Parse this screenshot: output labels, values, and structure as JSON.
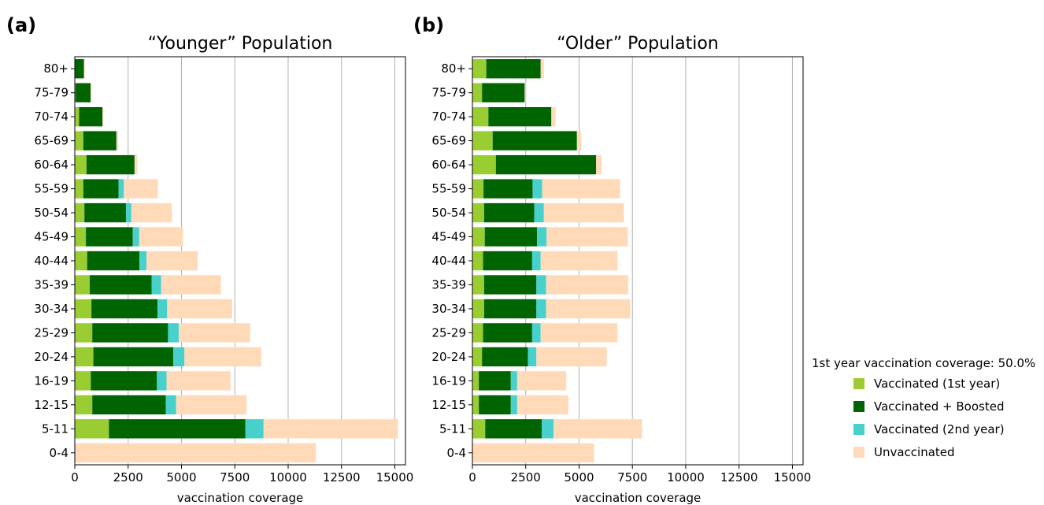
{
  "figure": {
    "legend": {
      "title": "1st year vaccination coverage: 50.0%",
      "entries": [
        {
          "label": "Vaccinated (1st year)",
          "color": "#9acd32"
        },
        {
          "label": "Vaccinated + Boosted",
          "color": "#006400"
        },
        {
          "label": "Vaccinated (2nd year)",
          "color": "#48d1cc"
        },
        {
          "label": "Unvaccinated",
          "color": "#ffdab9"
        }
      ],
      "placement": "right"
    }
  },
  "chart_data": [
    {
      "type": "bar",
      "orientation": "horizontal",
      "stacked": true,
      "panel_label": "(a)",
      "title": "“Younger” Population",
      "xlabel": "vaccination coverage",
      "ylabel": "",
      "xlim": [
        0,
        15500
      ],
      "xticks": [
        0,
        2500,
        5000,
        7500,
        10000,
        12500,
        15000
      ],
      "grid": "x",
      "categories": [
        "80+",
        "75-79",
        "70-74",
        "65-69",
        "60-64",
        "55-59",
        "50-54",
        "45-49",
        "40-44",
        "35-39",
        "30-34",
        "25-29",
        "20-24",
        "16-19",
        "12-15",
        "5-11",
        "0-4"
      ],
      "series": [
        {
          "name": "Vaccinated (1st year)",
          "color": "#9acd32",
          "values": [
            20,
            40,
            200,
            400,
            550,
            400,
            450,
            520,
            580,
            700,
            780,
            820,
            870,
            750,
            820,
            1600,
            0
          ]
        },
        {
          "name": "Vaccinated + Boosted",
          "color": "#006400",
          "values": [
            410,
            700,
            1100,
            1550,
            2250,
            1650,
            1950,
            2200,
            2450,
            2900,
            3100,
            3550,
            3750,
            3100,
            3450,
            6400,
            0
          ]
        },
        {
          "name": "Vaccinated (2nd year)",
          "color": "#48d1cc",
          "values": [
            0,
            0,
            0,
            0,
            0,
            250,
            250,
            300,
            330,
            450,
            450,
            500,
            520,
            450,
            480,
            850,
            0
          ]
        },
        {
          "name": "Unvaccinated",
          "color": "#ffdab9",
          "values": [
            30,
            40,
            30,
            80,
            130,
            1600,
            1900,
            2050,
            2400,
            2800,
            3050,
            3350,
            3600,
            3000,
            3300,
            6300,
            11300
          ]
        }
      ]
    },
    {
      "type": "bar",
      "orientation": "horizontal",
      "stacked": true,
      "panel_label": "(b)",
      "title": "“Older” Population",
      "xlabel": "vaccination coverage",
      "ylabel": "",
      "xlim": [
        0,
        15500
      ],
      "xticks": [
        0,
        2500,
        5000,
        7500,
        10000,
        12500,
        15000
      ],
      "grid": "x",
      "categories": [
        "80+",
        "75-79",
        "70-74",
        "65-69",
        "60-64",
        "55-59",
        "50-54",
        "45-49",
        "40-44",
        "35-39",
        "30-34",
        "25-29",
        "20-24",
        "16-19",
        "12-15",
        "5-11",
        "0-4"
      ],
      "series": [
        {
          "name": "Vaccinated (1st year)",
          "color": "#9acd32",
          "values": [
            650,
            450,
            750,
            950,
            1100,
            520,
            550,
            580,
            500,
            550,
            550,
            500,
            450,
            300,
            300,
            600,
            0
          ]
        },
        {
          "name": "Vaccinated + Boosted",
          "color": "#006400",
          "values": [
            2550,
            2000,
            2950,
            3950,
            4700,
            2300,
            2350,
            2450,
            2300,
            2450,
            2450,
            2300,
            2150,
            1500,
            1500,
            2650,
            0
          ]
        },
        {
          "name": "Vaccinated (2nd year)",
          "color": "#48d1cc",
          "values": [
            0,
            0,
            0,
            0,
            0,
            450,
            450,
            450,
            400,
            450,
            450,
            400,
            400,
            300,
            300,
            550,
            0
          ]
        },
        {
          "name": "Unvaccinated",
          "color": "#ffdab9",
          "values": [
            150,
            50,
            200,
            200,
            250,
            3650,
            3750,
            3800,
            3600,
            3850,
            3950,
            3600,
            3300,
            2300,
            2400,
            4150,
            5700
          ]
        }
      ]
    }
  ]
}
